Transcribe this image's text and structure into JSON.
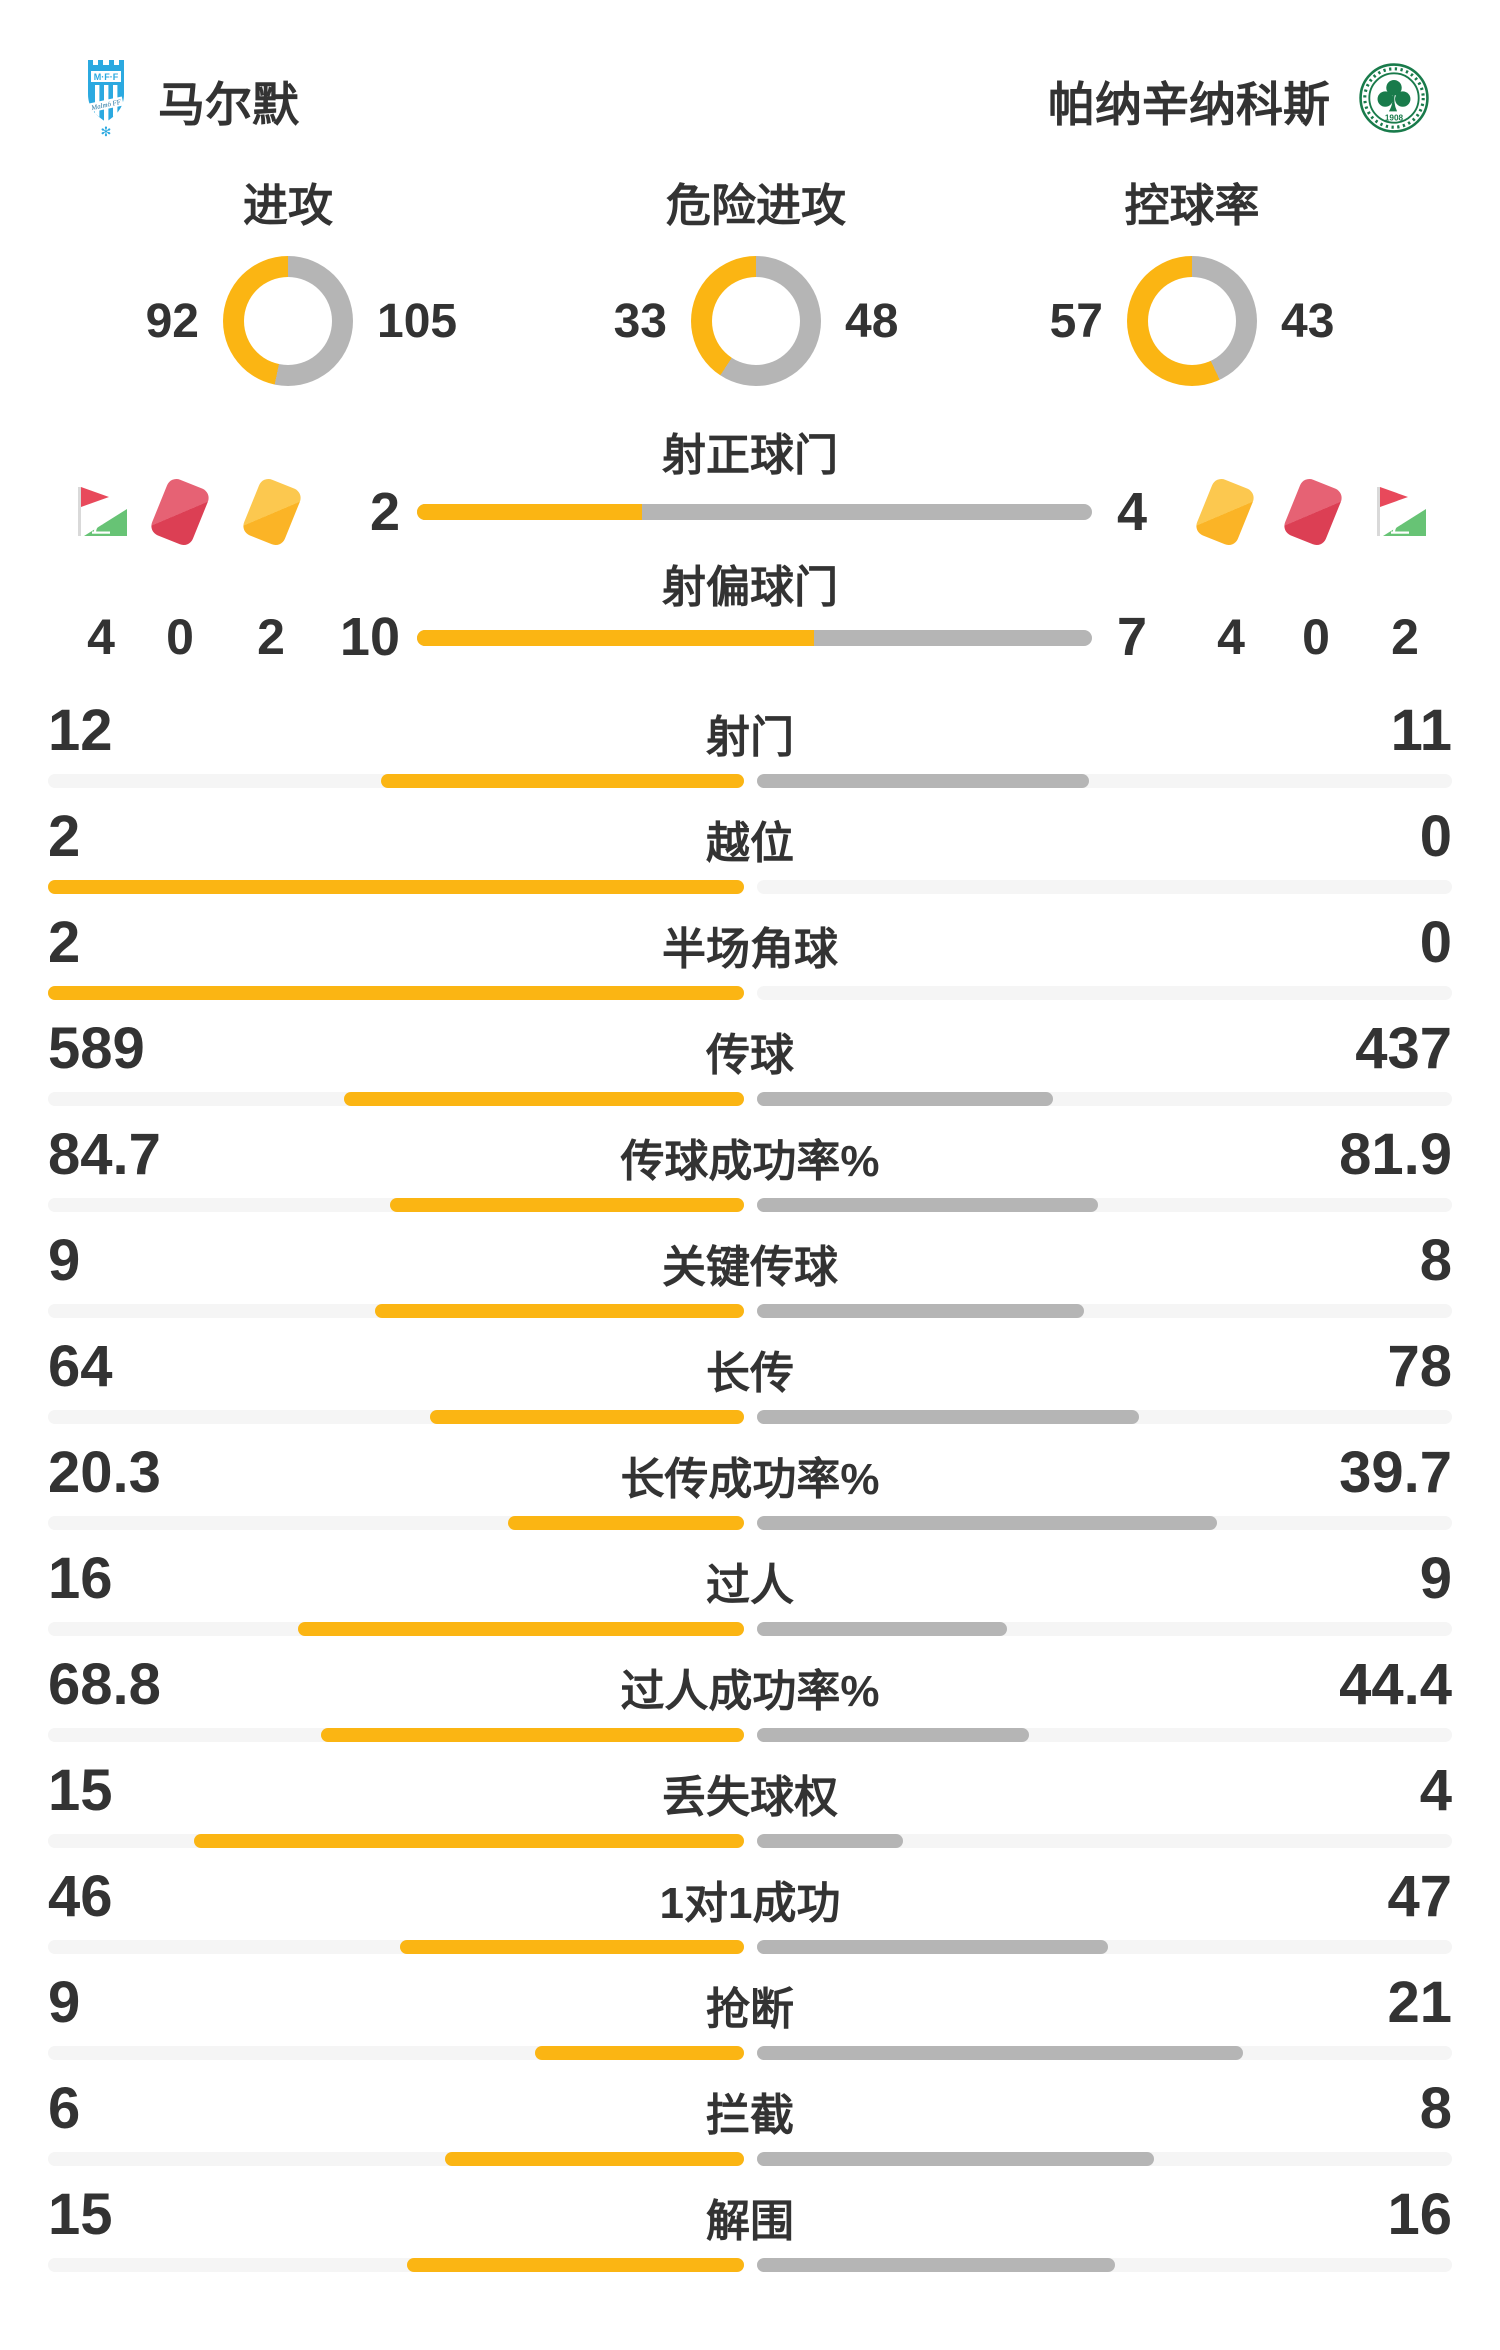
{
  "teams": {
    "home": {
      "name": "马尔默"
    },
    "away": {
      "name": "帕纳辛纳科斯"
    }
  },
  "donuts": [
    {
      "label": "进攻",
      "home": 92,
      "away": 105
    },
    {
      "label": "危险进攻",
      "home": 33,
      "away": 48
    },
    {
      "label": "控球率",
      "home": 57,
      "away": 43
    }
  ],
  "shot_rows": [
    {
      "label": "射正球门",
      "home": 2,
      "away": 4
    },
    {
      "label": "射偏球门",
      "home": 10,
      "away": 7
    }
  ],
  "cards": {
    "home": {
      "corner": 4,
      "red": 0,
      "yellow": 2
    },
    "away": {
      "yellow": 4,
      "red": 0,
      "corner": 2
    }
  },
  "stats": [
    {
      "label": "射门",
      "home": 12,
      "away": 11
    },
    {
      "label": "越位",
      "home": 2,
      "away": 0
    },
    {
      "label": "半场角球",
      "home": 2,
      "away": 0
    },
    {
      "label": "传球",
      "home": 589,
      "away": 437
    },
    {
      "label": "传球成功率%",
      "home": 84.7,
      "away": 81.9
    },
    {
      "label": "关键传球",
      "home": 9,
      "away": 8
    },
    {
      "label": "长传",
      "home": 64,
      "away": 78
    },
    {
      "label": "长传成功率%",
      "home": 20.3,
      "away": 39.7
    },
    {
      "label": "过人",
      "home": 16,
      "away": 9
    },
    {
      "label": "过人成功率%",
      "home": 68.8,
      "away": 44.4
    },
    {
      "label": "丢失球权",
      "home": 15,
      "away": 4
    },
    {
      "label": "1对1成功",
      "home": 46,
      "away": 47
    },
    {
      "label": "抢断",
      "home": 9,
      "away": 21
    },
    {
      "label": "拦截",
      "home": 6,
      "away": 8
    },
    {
      "label": "解围",
      "home": 15,
      "away": 16
    }
  ],
  "icons": {
    "home_logo": "malmo-crest",
    "away_logo": "panathinaikos-crest",
    "left_order": [
      "corner-flag",
      "red-card",
      "yellow-card"
    ],
    "right_order": [
      "yellow-card",
      "red-card",
      "corner-flag"
    ]
  },
  "colors": {
    "home_fill": "#fbb513",
    "away_fill": "#b5b5b5",
    "track": "#f5f5f5",
    "text": "#333333",
    "red_card": "#dc3f54",
    "yellow_card": "#fbb426",
    "flag_red": "#e8495b",
    "flag_green": "#67c375",
    "malmo_blue": "#2ba9e0",
    "pana_green": "#197b4b"
  }
}
